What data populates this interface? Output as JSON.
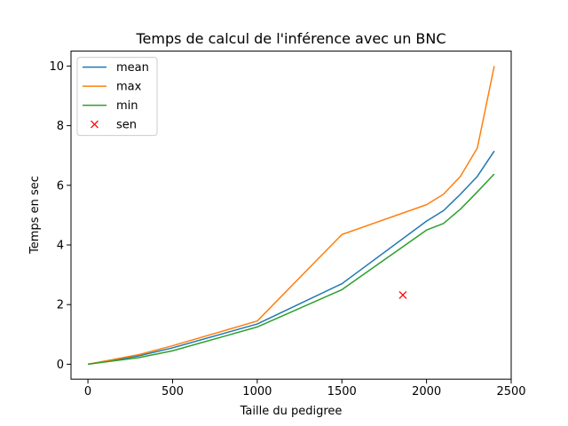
{
  "chart_data": {
    "type": "line",
    "title": "Temps de calcul de l'inférence avec un BNC",
    "xlabel": "Taille du pedigree",
    "ylabel": "Temps en sec",
    "xlim": [
      -100,
      2500
    ],
    "ylim": [
      -0.5,
      10.5
    ],
    "xticks": [
      0,
      500,
      1000,
      1500,
      2000,
      2500
    ],
    "xtick_labels": [
      "0",
      "500",
      "1000",
      "1500",
      "2000",
      "2500"
    ],
    "yticks": [
      0,
      2,
      4,
      6,
      8,
      10
    ],
    "ytick_labels": [
      "0",
      "2",
      "4",
      "6",
      "8",
      "10"
    ],
    "grid": false,
    "legend_position": "top-left",
    "series": [
      {
        "name": "mean",
        "color": "#1f77b4",
        "marker": "line",
        "x": [
          0,
          300,
          500,
          1000,
          1500,
          2000,
          2100,
          2200,
          2300,
          2400
        ],
        "y": [
          0.0,
          0.28,
          0.55,
          1.35,
          2.7,
          4.8,
          5.15,
          5.7,
          6.3,
          7.15
        ]
      },
      {
        "name": "max",
        "color": "#ff7f0e",
        "marker": "line",
        "x": [
          0,
          300,
          500,
          1000,
          1500,
          2000,
          2100,
          2200,
          2300,
          2400
        ],
        "y": [
          0.0,
          0.32,
          0.62,
          1.45,
          4.35,
          5.35,
          5.7,
          6.3,
          7.25,
          10.0
        ]
      },
      {
        "name": "min",
        "color": "#2ca02c",
        "marker": "line",
        "x": [
          0,
          300,
          500,
          1000,
          1500,
          2000,
          2100,
          2200,
          2300,
          2400
        ],
        "y": [
          0.0,
          0.22,
          0.45,
          1.25,
          2.5,
          4.5,
          4.72,
          5.2,
          5.78,
          6.38
        ]
      },
      {
        "name": "sen",
        "color": "#ff0000",
        "marker": "x",
        "x": [
          1860
        ],
        "y": [
          2.32
        ]
      }
    ]
  }
}
